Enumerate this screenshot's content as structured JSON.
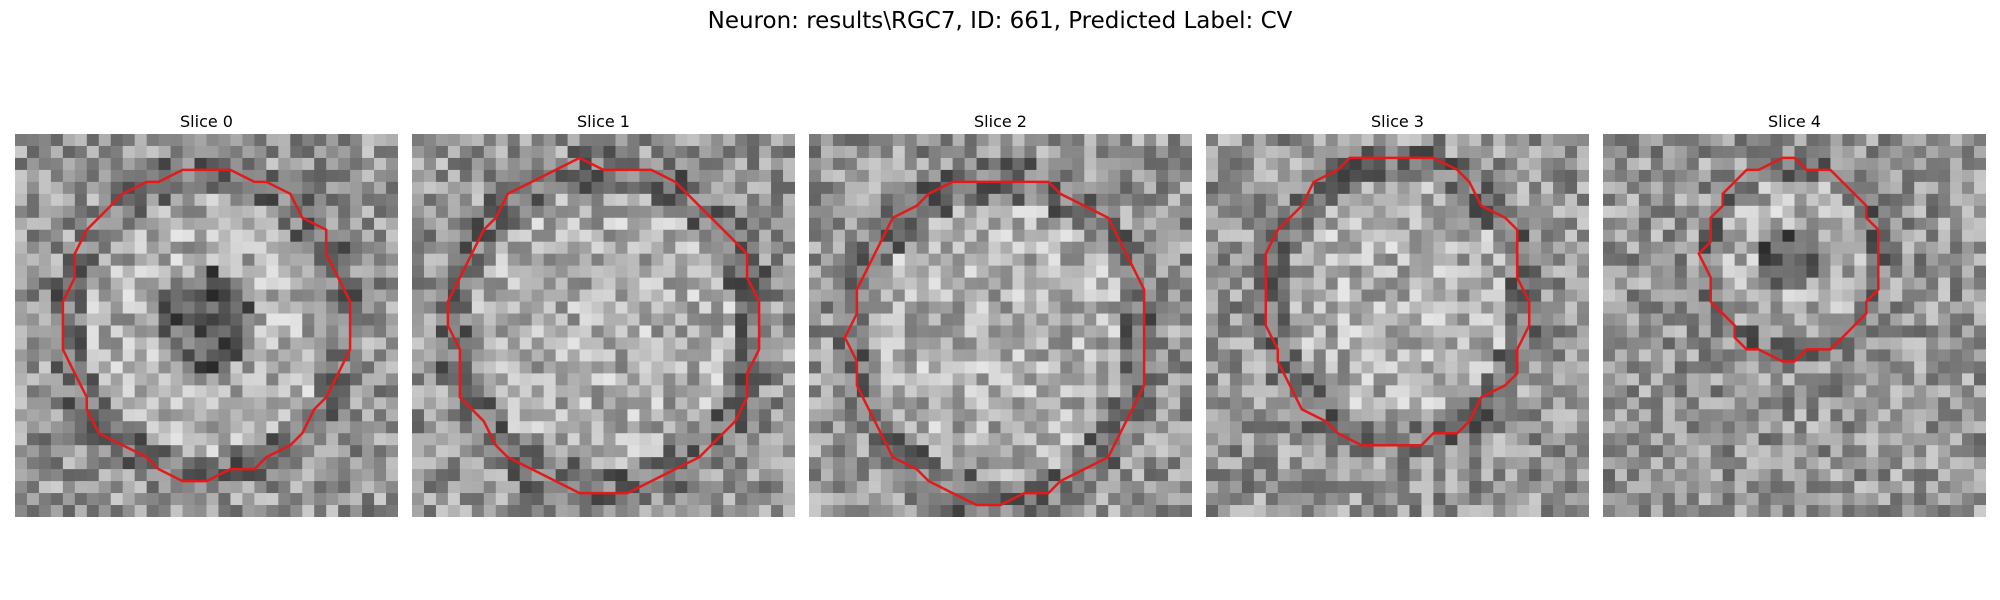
{
  "figure": {
    "title": "Neuron: results\\RGC7, ID: 661, Predicted Label: CV"
  },
  "slices": [
    {
      "title": "Slice 0",
      "seed": 11,
      "dark_center": true
    },
    {
      "title": "Slice 1",
      "seed": 23,
      "dark_center": false
    },
    {
      "title": "Slice 2",
      "seed": 37,
      "dark_center": false
    },
    {
      "title": "Slice 3",
      "seed": 41,
      "dark_center": false
    },
    {
      "title": "Slice 4",
      "seed": 53,
      "dark_center": true
    }
  ],
  "colors": {
    "contour": "#e31a1c"
  }
}
